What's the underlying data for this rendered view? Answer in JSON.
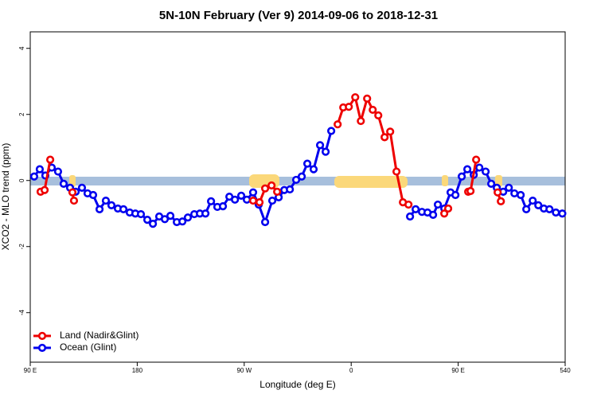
{
  "chart_data": {
    "type": "line",
    "title": "5N-10N February (Ver 9)   2014-09-06 to 2018-12-31",
    "x_label": "Longitude (deg E)",
    "y_label": "XCO2 - MLO trend (ppm)",
    "xlim": [
      90,
      540
    ],
    "ylim": [
      -5.5,
      4.5
    ],
    "xticks": [
      {
        "value": 90,
        "label": "90 E"
      },
      180,
      {
        "value": 270,
        "label": "90 W"
      },
      {
        "value": 360,
        "label": "0"
      },
      {
        "value": 450,
        "label": "90 E"
      },
      540
    ],
    "yticks": [
      -4,
      -2,
      0,
      2,
      4
    ],
    "legend": "bottom-left",
    "series": [
      {
        "name": "Land (Nadir&Glint)",
        "color": "#ee0000",
        "x": [
          98.7,
          102.1,
          106.8,
          null,
          125.5,
          126.8,
          null,
          277.5,
          282.9,
          287.6,
          293,
          297.7,
          null,
          348.6,
          353.3,
          358,
          363.4,
          368.1,
          373.4,
          378.1,
          382.8,
          388.1,
          392.8,
          398.1,
          403.5,
          408.2,
          null,
          438.3,
          441.6,
          null,
          458.4,
          460.4,
          465.1,
          null,
          483.2,
          485.9
        ],
        "values": [
          -0.34,
          -0.29,
          0.63,
          null,
          -0.36,
          -0.61,
          null,
          -0.61,
          -0.66,
          -0.24,
          -0.15,
          -0.34,
          null,
          1.7,
          2.21,
          2.23,
          2.52,
          1.8,
          2.48,
          2.14,
          1.97,
          1.31,
          1.48,
          0.27,
          -0.66,
          -0.73,
          null,
          -1.0,
          -0.85,
          null,
          -0.34,
          -0.32,
          0.63,
          null,
          -0.36,
          -0.63
        ]
      },
      {
        "name": "Ocean (Glint)",
        "color": "#0000ee",
        "x": [
          93.3,
          98,
          102.7,
          108.1,
          113.4,
          118.1,
          123.5,
          128.2,
          133.5,
          138.2,
          142.9,
          148.3,
          153.6,
          158.3,
          163.7,
          168.4,
          173.7,
          178.4,
          183.1,
          188.5,
          193.2,
          198.5,
          203.2,
          207.9,
          213.3,
          218,
          222.6,
          228,
          232.7,
          237.4,
          242.1,
          247.4,
          252.1,
          257.5,
          262.2,
          267.5,
          272.2,
          277.5,
          282.2,
          287.6,
          293.6,
          299,
          303.7,
          308.4,
          313.7,
          318.4,
          323.1,
          328.4,
          333.8,
          338.5,
          343.2,
          null,
          409.5,
          414.2,
          419.5,
          424.2,
          428.9,
          432.9,
          438.3,
          443.6,
          447.7,
          453,
          457.7,
          463.1,
          467.8,
          473.1,
          477.8,
          482.5,
          487.9,
          492.6,
          497.3,
          502.6,
          507.3,
          512.7,
          517.4,
          522.1,
          526.8,
          532.2,
          537.6
        ],
        "values": [
          0.12,
          0.34,
          0.15,
          0.39,
          0.27,
          -0.1,
          -0.22,
          -0.34,
          -0.22,
          -0.39,
          -0.44,
          -0.87,
          -0.61,
          -0.75,
          -0.85,
          -0.87,
          -0.97,
          -1.0,
          -1.02,
          -1.19,
          -1.31,
          -1.09,
          -1.17,
          -1.07,
          -1.26,
          -1.24,
          -1.12,
          -1.02,
          -1.0,
          -1.0,
          -0.63,
          -0.8,
          -0.78,
          -0.49,
          -0.58,
          -0.46,
          -0.58,
          -0.36,
          -0.73,
          -1.26,
          -0.61,
          -0.51,
          -0.29,
          -0.27,
          0.02,
          0.12,
          0.51,
          0.34,
          1.07,
          0.87,
          1.5,
          null,
          -1.09,
          -0.87,
          -0.95,
          -0.97,
          -1.04,
          -0.73,
          -0.85,
          -0.36,
          -0.44,
          0.12,
          0.34,
          0.17,
          0.39,
          0.27,
          -0.1,
          -0.22,
          -0.34,
          -0.22,
          -0.39,
          -0.44,
          -0.87,
          -0.61,
          -0.75,
          -0.85,
          -0.87,
          -0.97,
          -1.0
        ]
      }
    ]
  }
}
